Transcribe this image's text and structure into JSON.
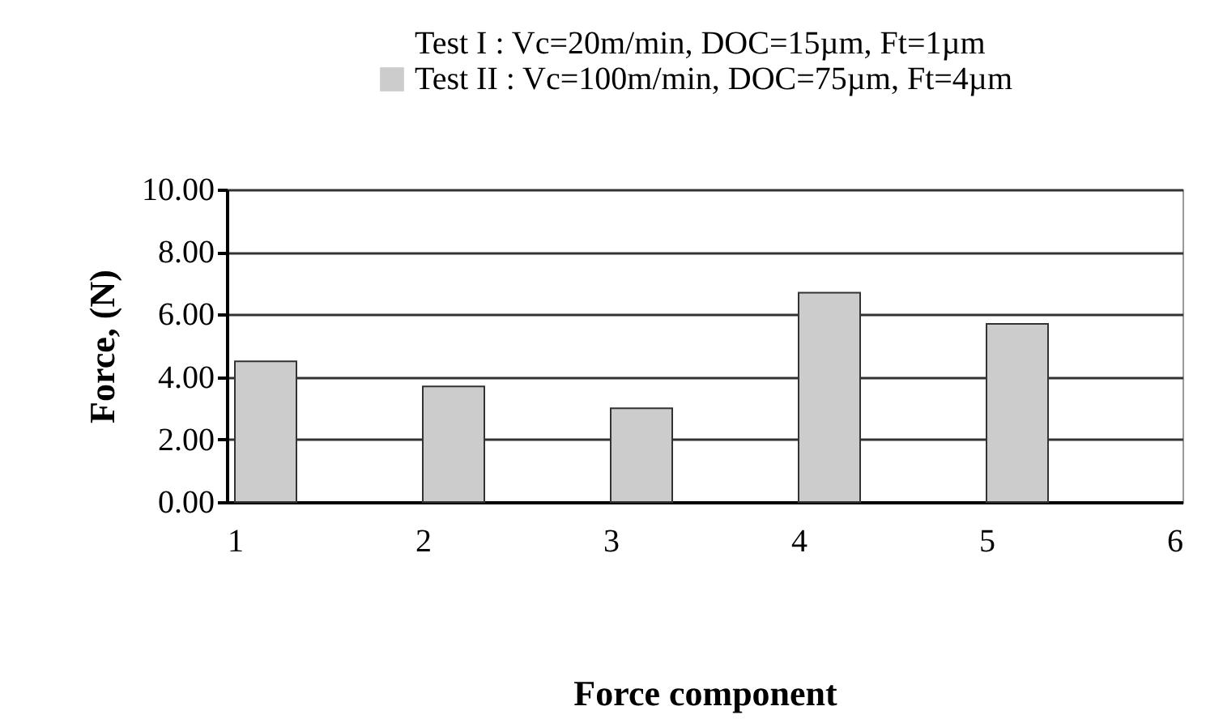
{
  "chart_data": {
    "type": "bar",
    "xlabel": "Force component",
    "ylabel": "Force, (N)",
    "x": [
      1,
      2,
      3,
      4,
      5
    ],
    "series": [
      {
        "name": "Test I : Vc=20m/min, DOC=15µm, Ft=1µm",
        "values": [
          null,
          null,
          null,
          null,
          null
        ]
      },
      {
        "name": "Test II : Vc=100m/min, DOC=75µm, Ft=4µm",
        "color": "#cccccc",
        "values": [
          4.5,
          3.7,
          3.0,
          6.7,
          5.7
        ]
      }
    ],
    "xlim": [
      1,
      6
    ],
    "xticks": [
      1,
      2,
      3,
      4,
      5,
      6
    ],
    "ylim": [
      0,
      10
    ],
    "yticks": [
      {
        "value": 0,
        "label": "0.00"
      },
      {
        "value": 2,
        "label": "2.00"
      },
      {
        "value": 4,
        "label": "4.00"
      },
      {
        "value": 6,
        "label": "6.00"
      },
      {
        "value": 8,
        "label": "8.00"
      },
      {
        "value": 10,
        "label": "10.00"
      }
    ],
    "grid": "y",
    "legend": "top"
  }
}
